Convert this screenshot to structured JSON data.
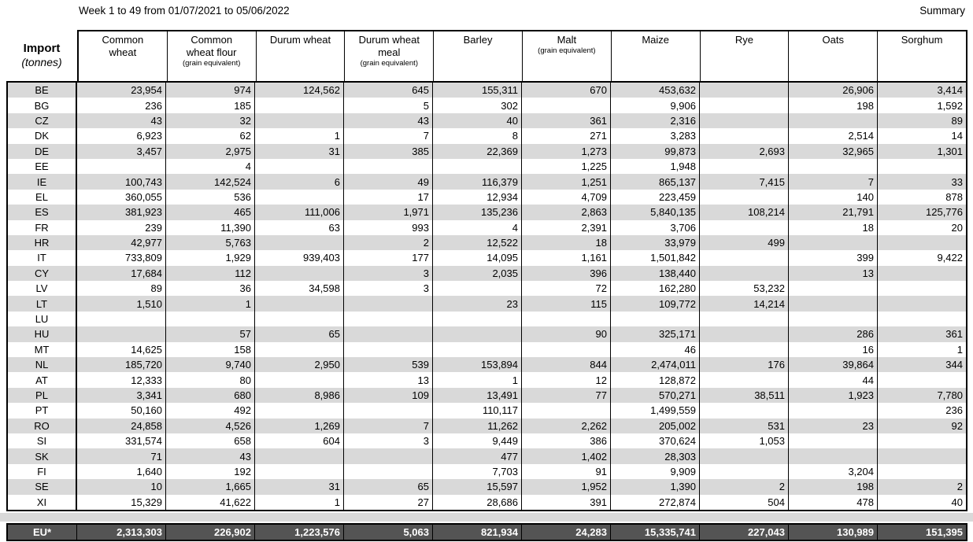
{
  "header": {
    "title": "Week 1 to 49 from 01/07/2021 to 05/06/2022",
    "summary_label": "Summary"
  },
  "colors": {
    "stripe": "#d9d9d9",
    "footer_bg": "#545454",
    "footer_text": "#ffffff",
    "border": "#000000"
  },
  "table": {
    "corner": {
      "title": "Import",
      "subtitle": "(tonnes)"
    },
    "columns": [
      {
        "label": "Common wheat",
        "sublabel": ""
      },
      {
        "label": "Common wheat flour",
        "sublabel": "(grain equivalent)"
      },
      {
        "label": "Durum wheat",
        "sublabel": ""
      },
      {
        "label": "Durum wheat meal",
        "sublabel": "(grain equivalent)"
      },
      {
        "label": "Barley",
        "sublabel": ""
      },
      {
        "label": "Malt",
        "sublabel": "(grain equivalent)"
      },
      {
        "label": "Maize",
        "sublabel": ""
      },
      {
        "label": "Rye",
        "sublabel": ""
      },
      {
        "label": "Oats",
        "sublabel": ""
      },
      {
        "label": "Sorghum",
        "sublabel": ""
      }
    ],
    "rows": [
      {
        "code": "BE",
        "values": [
          "23,954",
          "974",
          "124,562",
          "645",
          "155,311",
          "670",
          "453,632",
          "",
          "26,906",
          "3,414"
        ]
      },
      {
        "code": "BG",
        "values": [
          "236",
          "185",
          "",
          "5",
          "302",
          "",
          "9,906",
          "",
          "198",
          "1,592"
        ]
      },
      {
        "code": "CZ",
        "values": [
          "43",
          "32",
          "",
          "43",
          "40",
          "361",
          "2,316",
          "",
          "",
          "89"
        ]
      },
      {
        "code": "DK",
        "values": [
          "6,923",
          "62",
          "1",
          "7",
          "8",
          "271",
          "3,283",
          "",
          "2,514",
          "14"
        ]
      },
      {
        "code": "DE",
        "values": [
          "3,457",
          "2,975",
          "31",
          "385",
          "22,369",
          "1,273",
          "99,873",
          "2,693",
          "32,965",
          "1,301"
        ]
      },
      {
        "code": "EE",
        "values": [
          "",
          "4",
          "",
          "",
          "",
          "1,225",
          "1,948",
          "",
          "",
          ""
        ]
      },
      {
        "code": "IE",
        "values": [
          "100,743",
          "142,524",
          "6",
          "49",
          "116,379",
          "1,251",
          "865,137",
          "7,415",
          "7",
          "33"
        ]
      },
      {
        "code": "EL",
        "values": [
          "360,055",
          "536",
          "",
          "17",
          "12,934",
          "4,709",
          "223,459",
          "",
          "140",
          "878"
        ]
      },
      {
        "code": "ES",
        "values": [
          "381,923",
          "465",
          "111,006",
          "1,971",
          "135,236",
          "2,863",
          "5,840,135",
          "108,214",
          "21,791",
          "125,776"
        ]
      },
      {
        "code": "FR",
        "values": [
          "239",
          "11,390",
          "63",
          "993",
          "4",
          "2,391",
          "3,706",
          "",
          "18",
          "20"
        ]
      },
      {
        "code": "HR",
        "values": [
          "42,977",
          "5,763",
          "",
          "2",
          "12,522",
          "18",
          "33,979",
          "499",
          "",
          ""
        ]
      },
      {
        "code": "IT",
        "values": [
          "733,809",
          "1,929",
          "939,403",
          "177",
          "14,095",
          "1,161",
          "1,501,842",
          "",
          "399",
          "9,422"
        ]
      },
      {
        "code": "CY",
        "values": [
          "17,684",
          "112",
          "",
          "3",
          "2,035",
          "396",
          "138,440",
          "",
          "13",
          ""
        ]
      },
      {
        "code": "LV",
        "values": [
          "89",
          "36",
          "34,598",
          "3",
          "",
          "72",
          "162,280",
          "53,232",
          "",
          ""
        ]
      },
      {
        "code": "LT",
        "values": [
          "1,510",
          "1",
          "",
          "",
          "23",
          "115",
          "109,772",
          "14,214",
          "",
          ""
        ]
      },
      {
        "code": "LU",
        "values": [
          "",
          "",
          "",
          "",
          "",
          "",
          "",
          "",
          "",
          ""
        ]
      },
      {
        "code": "HU",
        "values": [
          "",
          "57",
          "65",
          "",
          "",
          "90",
          "325,171",
          "",
          "286",
          "361"
        ]
      },
      {
        "code": "MT",
        "values": [
          "14,625",
          "158",
          "",
          "",
          "",
          "",
          "46",
          "",
          "16",
          "1"
        ]
      },
      {
        "code": "NL",
        "values": [
          "185,720",
          "9,740",
          "2,950",
          "539",
          "153,894",
          "844",
          "2,474,011",
          "176",
          "39,864",
          "344"
        ]
      },
      {
        "code": "AT",
        "values": [
          "12,333",
          "80",
          "",
          "13",
          "1",
          "12",
          "128,872",
          "",
          "44",
          ""
        ]
      },
      {
        "code": "PL",
        "values": [
          "3,341",
          "680",
          "8,986",
          "109",
          "13,491",
          "77",
          "570,271",
          "38,511",
          "1,923",
          "7,780"
        ]
      },
      {
        "code": "PT",
        "values": [
          "50,160",
          "492",
          "",
          "",
          "110,117",
          "",
          "1,499,559",
          "",
          "",
          "236"
        ]
      },
      {
        "code": "RO",
        "values": [
          "24,858",
          "4,526",
          "1,269",
          "7",
          "11,262",
          "2,262",
          "205,002",
          "531",
          "23",
          "92"
        ]
      },
      {
        "code": "SI",
        "values": [
          "331,574",
          "658",
          "604",
          "3",
          "9,449",
          "386",
          "370,624",
          "1,053",
          "",
          ""
        ]
      },
      {
        "code": "SK",
        "values": [
          "71",
          "43",
          "",
          "",
          "477",
          "1,402",
          "28,303",
          "",
          "",
          ""
        ]
      },
      {
        "code": "FI",
        "values": [
          "1,640",
          "192",
          "",
          "",
          "7,703",
          "91",
          "9,909",
          "",
          "3,204",
          ""
        ]
      },
      {
        "code": "SE",
        "values": [
          "10",
          "1,665",
          "31",
          "65",
          "15,597",
          "1,952",
          "1,390",
          "2",
          "198",
          "2"
        ]
      },
      {
        "code": "XI",
        "values": [
          "15,329",
          "41,622",
          "1",
          "27",
          "28,686",
          "391",
          "272,874",
          "504",
          "478",
          "40"
        ]
      }
    ],
    "footer": {
      "code": "EU*",
      "values": [
        "2,313,303",
        "226,902",
        "1,223,576",
        "5,063",
        "821,934",
        "24,283",
        "15,335,741",
        "227,043",
        "130,989",
        "151,395"
      ]
    }
  }
}
